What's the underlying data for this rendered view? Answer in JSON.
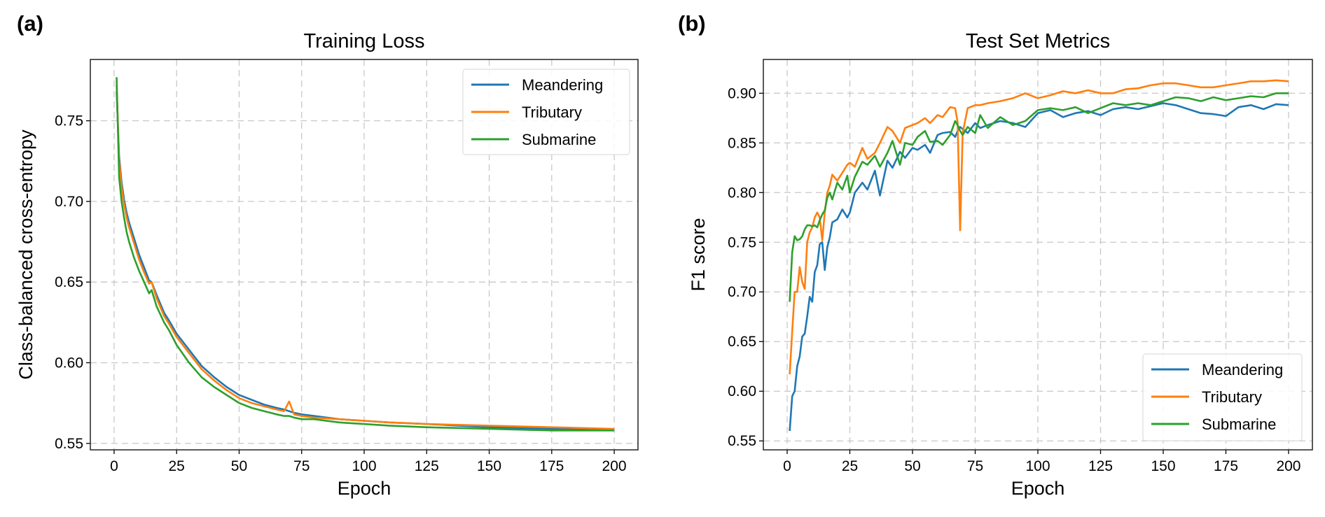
{
  "colors": {
    "Meandering": "#1f77b4",
    "Tributary": "#ff7f0e",
    "Submarine": "#2ca02c"
  },
  "chart_data": [
    {
      "panel_label": "(a)",
      "type": "line",
      "title": "Training Loss",
      "xlabel": "Epoch",
      "ylabel": "Class-balanced cross-entropy",
      "xlim": [
        -9.5,
        209.5
      ],
      "ylim": [
        0.546,
        0.788
      ],
      "xticks": [
        0,
        25,
        50,
        75,
        100,
        125,
        150,
        175,
        200
      ],
      "xtick_labels": [
        "0",
        "25",
        "50",
        "75",
        "100",
        "125",
        "150",
        "175",
        "200"
      ],
      "yticks": [
        0.55,
        0.6,
        0.65,
        0.7,
        0.75
      ],
      "ytick_labels": [
        "0.55",
        "0.60",
        "0.65",
        "0.70",
        "0.75"
      ],
      "grid": true,
      "legend_position": "upper right",
      "x": [
        1,
        2,
        3,
        4,
        5,
        6,
        8,
        10,
        12,
        14,
        15,
        17,
        20,
        22,
        25,
        30,
        35,
        40,
        45,
        50,
        55,
        60,
        65,
        68,
        70,
        72,
        75,
        80,
        90,
        100,
        110,
        125,
        150,
        175,
        200
      ],
      "series": [
        {
          "name": "Meandering",
          "values": [
            0.768,
            0.728,
            0.712,
            0.701,
            0.693,
            0.687,
            0.677,
            0.667,
            0.659,
            0.651,
            0.65,
            0.642,
            0.631,
            0.626,
            0.618,
            0.608,
            0.598,
            0.591,
            0.585,
            0.58,
            0.577,
            0.574,
            0.572,
            0.571,
            0.57,
            0.569,
            0.568,
            0.567,
            0.565,
            0.564,
            0.563,
            0.562,
            0.56,
            0.559,
            0.558
          ]
        },
        {
          "name": "Tributary",
          "values": [
            0.772,
            0.725,
            0.709,
            0.698,
            0.69,
            0.684,
            0.674,
            0.664,
            0.656,
            0.649,
            0.65,
            0.64,
            0.629,
            0.624,
            0.616,
            0.606,
            0.596,
            0.589,
            0.583,
            0.578,
            0.575,
            0.573,
            0.571,
            0.57,
            0.576,
            0.568,
            0.567,
            0.566,
            0.565,
            0.564,
            0.563,
            0.562,
            0.561,
            0.56,
            0.559
          ]
        },
        {
          "name": "Submarine",
          "values": [
            0.777,
            0.715,
            0.7,
            0.69,
            0.681,
            0.675,
            0.665,
            0.657,
            0.65,
            0.643,
            0.645,
            0.635,
            0.625,
            0.62,
            0.611,
            0.6,
            0.591,
            0.585,
            0.58,
            0.575,
            0.572,
            0.57,
            0.568,
            0.567,
            0.567,
            0.566,
            0.565,
            0.565,
            0.563,
            0.562,
            0.561,
            0.56,
            0.559,
            0.558,
            0.558
          ]
        }
      ]
    },
    {
      "panel_label": "(b)",
      "type": "line",
      "title": "Test Set Metrics",
      "xlabel": "Epoch",
      "ylabel": "F1 score",
      "xlim": [
        -9.5,
        209.5
      ],
      "ylim": [
        0.541,
        0.934
      ],
      "xticks": [
        0,
        25,
        50,
        75,
        100,
        125,
        150,
        175,
        200
      ],
      "xtick_labels": [
        "0",
        "25",
        "50",
        "75",
        "100",
        "125",
        "150",
        "175",
        "200"
      ],
      "yticks": [
        0.55,
        0.6,
        0.65,
        0.7,
        0.75,
        0.8,
        0.85,
        0.9
      ],
      "ytick_labels": [
        "0.55",
        "0.60",
        "0.65",
        "0.70",
        "0.75",
        "0.80",
        "0.85",
        "0.90"
      ],
      "grid": true,
      "legend_position": "lower right",
      "x": [
        1,
        2,
        3,
        4,
        5,
        6,
        7,
        8,
        9,
        10,
        11,
        12,
        13,
        14,
        15,
        16,
        17,
        18,
        20,
        22,
        24,
        25,
        27,
        30,
        32,
        35,
        37,
        40,
        42,
        45,
        47,
        50,
        52,
        55,
        57,
        60,
        62,
        65,
        67,
        68,
        69,
        70,
        72,
        75,
        77,
        80,
        85,
        90,
        95,
        100,
        105,
        110,
        115,
        120,
        125,
        130,
        135,
        140,
        145,
        150,
        155,
        160,
        165,
        170,
        175,
        180,
        185,
        190,
        195,
        200
      ],
      "series": [
        {
          "name": "Meandering",
          "values": [
            0.56,
            0.595,
            0.6,
            0.625,
            0.635,
            0.655,
            0.658,
            0.675,
            0.695,
            0.69,
            0.72,
            0.727,
            0.748,
            0.75,
            0.722,
            0.745,
            0.755,
            0.77,
            0.773,
            0.783,
            0.775,
            0.78,
            0.8,
            0.81,
            0.803,
            0.822,
            0.797,
            0.832,
            0.825,
            0.841,
            0.835,
            0.845,
            0.843,
            0.848,
            0.84,
            0.858,
            0.86,
            0.861,
            0.856,
            0.862,
            0.866,
            0.864,
            0.86,
            0.87,
            0.865,
            0.868,
            0.872,
            0.87,
            0.866,
            0.88,
            0.883,
            0.876,
            0.88,
            0.882,
            0.878,
            0.884,
            0.886,
            0.884,
            0.887,
            0.89,
            0.888,
            0.884,
            0.88,
            0.879,
            0.877,
            0.886,
            0.888,
            0.884,
            0.889,
            0.888
          ]
        },
        {
          "name": "Tributary",
          "values": [
            0.617,
            0.66,
            0.7,
            0.7,
            0.725,
            0.71,
            0.703,
            0.75,
            0.76,
            0.765,
            0.775,
            0.78,
            0.775,
            0.752,
            0.78,
            0.8,
            0.807,
            0.818,
            0.812,
            0.82,
            0.828,
            0.83,
            0.826,
            0.845,
            0.834,
            0.84,
            0.85,
            0.866,
            0.862,
            0.85,
            0.865,
            0.868,
            0.87,
            0.875,
            0.87,
            0.878,
            0.876,
            0.886,
            0.885,
            0.871,
            0.762,
            0.86,
            0.885,
            0.888,
            0.888,
            0.89,
            0.892,
            0.895,
            0.9,
            0.895,
            0.898,
            0.902,
            0.9,
            0.903,
            0.9,
            0.9,
            0.904,
            0.905,
            0.908,
            0.91,
            0.91,
            0.908,
            0.906,
            0.906,
            0.908,
            0.91,
            0.912,
            0.912,
            0.913,
            0.912
          ]
        },
        {
          "name": "Submarine",
          "values": [
            0.69,
            0.74,
            0.756,
            0.752,
            0.753,
            0.756,
            0.763,
            0.767,
            0.767,
            0.766,
            0.767,
            0.765,
            0.772,
            0.778,
            0.782,
            0.795,
            0.8,
            0.793,
            0.81,
            0.803,
            0.817,
            0.8,
            0.816,
            0.831,
            0.828,
            0.837,
            0.826,
            0.84,
            0.852,
            0.828,
            0.85,
            0.848,
            0.856,
            0.862,
            0.851,
            0.852,
            0.848,
            0.858,
            0.872,
            0.868,
            0.862,
            0.858,
            0.866,
            0.86,
            0.878,
            0.865,
            0.876,
            0.868,
            0.872,
            0.883,
            0.885,
            0.883,
            0.886,
            0.88,
            0.885,
            0.89,
            0.888,
            0.89,
            0.888,
            0.892,
            0.896,
            0.895,
            0.892,
            0.896,
            0.893,
            0.895,
            0.897,
            0.896,
            0.9,
            0.9
          ]
        }
      ]
    }
  ]
}
